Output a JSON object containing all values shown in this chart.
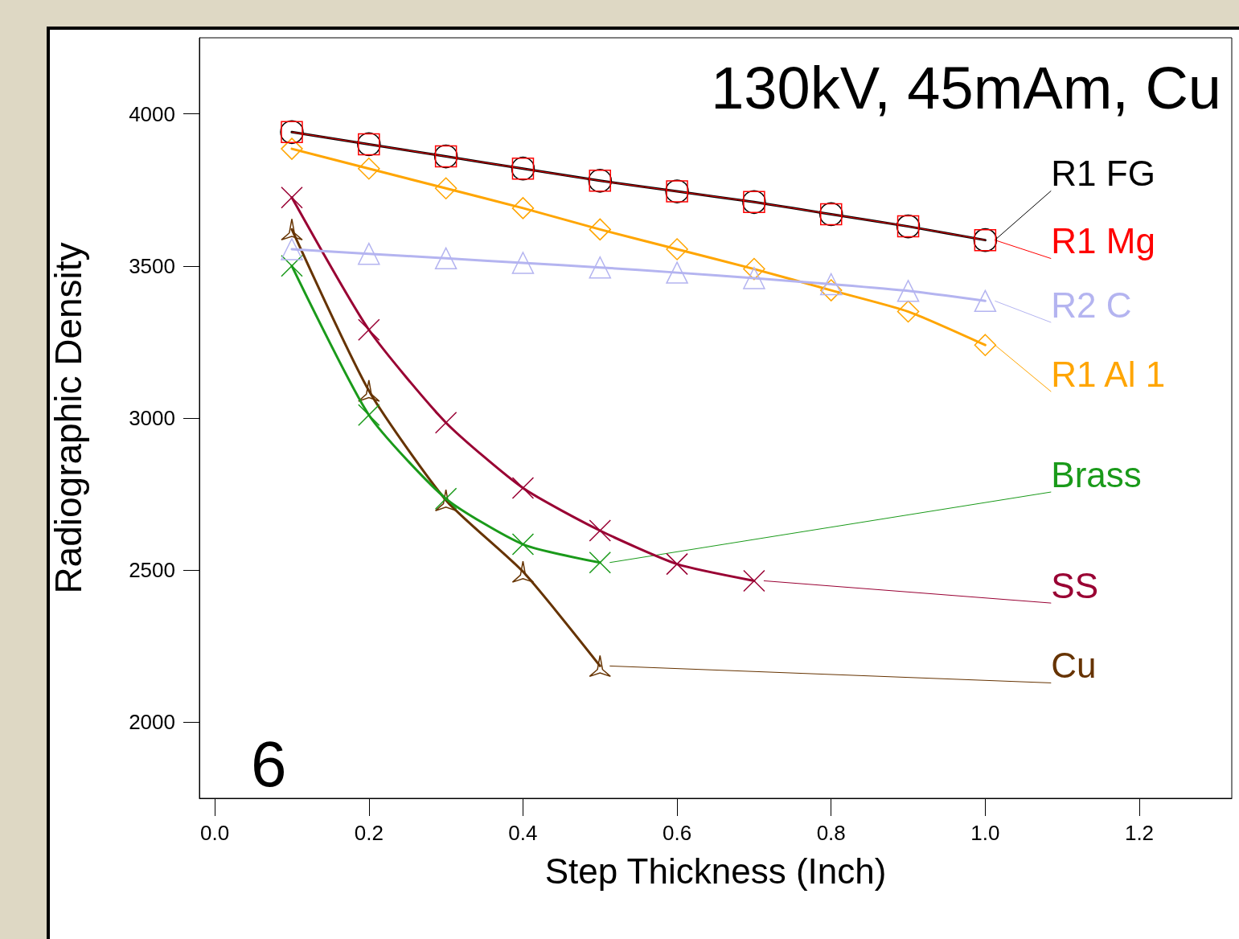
{
  "chart_data": {
    "type": "line",
    "title": "130kV, 45mAm, Cu",
    "xlabel": "Step Thickness (Inch)",
    "ylabel": "Radiographic Density",
    "annotations": [
      "6"
    ],
    "x": [
      0.1,
      0.2,
      0.3,
      0.4,
      0.5,
      0.6,
      0.7,
      0.8,
      0.9,
      1.0
    ],
    "series": [
      {
        "name": "R1 FG",
        "color": "#000000",
        "marker": "circle",
        "values": [
          3940,
          3900,
          3860,
          3820,
          3780,
          3745,
          3710,
          3670,
          3630,
          3585
        ]
      },
      {
        "name": "R1 Mg",
        "color": "#ff0000",
        "marker": "square",
        "values": [
          3940,
          3900,
          3860,
          3820,
          3780,
          3745,
          3710,
          3670,
          3630,
          3585
        ]
      },
      {
        "name": "R2 C",
        "color": "#b4b4f0",
        "marker": "triangle",
        "values": [
          3555,
          3540,
          3525,
          3510,
          3495,
          3478,
          3460,
          3440,
          3418,
          3385
        ]
      },
      {
        "name": "R1 Al 1",
        "color": "#ffa500",
        "marker": "diamond",
        "values": [
          3885,
          3820,
          3755,
          3690,
          3620,
          3555,
          3490,
          3420,
          3350,
          3240
        ]
      },
      {
        "name": "Brass",
        "color": "#1a9a1a",
        "marker": "cross",
        "x": [
          0.1,
          0.2,
          0.3,
          0.4,
          0.5
        ],
        "values": [
          3500,
          3010,
          2735,
          2585,
          2525
        ]
      },
      {
        "name": "SS",
        "color": "#990033",
        "marker": "cross",
        "x": [
          0.1,
          0.2,
          0.3,
          0.4,
          0.5,
          0.6,
          0.7
        ],
        "values": [
          3725,
          3290,
          2985,
          2770,
          2630,
          2520,
          2465
        ]
      },
      {
        "name": "Cu",
        "color": "#663300",
        "marker": "star",
        "x": [
          0.1,
          0.2,
          0.3,
          0.4,
          0.5
        ],
        "values": [
          3620,
          3090,
          2730,
          2495,
          2185
        ]
      }
    ],
    "xlim": [
      -0.02,
      1.32
    ],
    "xticks": [
      {
        "value": 0,
        "label": "0.0"
      },
      0.2,
      0.4,
      0.6,
      0.8,
      {
        "value": 1,
        "label": "1.0"
      },
      1.2
    ],
    "ylim": [
      1750,
      4250
    ],
    "yticks": [
      2000,
      2500,
      3000,
      3500,
      4000
    ],
    "grid": false,
    "legend": "right",
    "line_style": "solid"
  }
}
